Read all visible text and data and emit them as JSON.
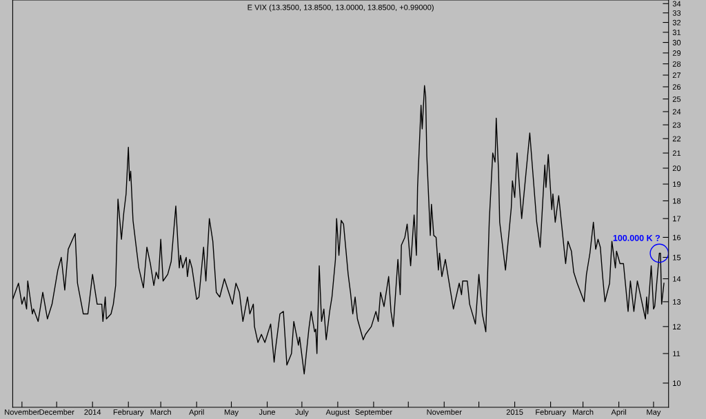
{
  "chart_data": {
    "type": "line",
    "title": "E VIX (13.3500, 13.8500, 13.0000, 13.8500, +0.99000)",
    "x": [
      "2013-10-24",
      "2013-10-29",
      "2013-11-01",
      "2013-11-03",
      "2013-11-05",
      "2013-11-06",
      "2013-11-10",
      "2013-11-11",
      "2013-11-15",
      "2013-11-19",
      "2013-11-23",
      "2013-11-27",
      "2013-12-02",
      "2013-12-05",
      "2013-12-08",
      "2013-12-11",
      "2013-12-17",
      "2013-12-19",
      "2013-12-24",
      "2013-12-28",
      "2014-01-01",
      "2014-01-05",
      "2014-01-09",
      "2014-01-10",
      "2014-01-12",
      "2014-01-13",
      "2014-01-17",
      "2014-01-19",
      "2014-01-21",
      "2014-01-23",
      "2014-01-26",
      "2014-01-28",
      "2014-01-30",
      "2014-02-01",
      "2014-02-02",
      "2014-02-03",
      "2014-02-05",
      "2014-02-08",
      "2014-02-10",
      "2014-02-14",
      "2014-02-17",
      "2014-02-20",
      "2014-02-23",
      "2014-02-25",
      "2014-02-27",
      "2014-03-01",
      "2014-03-03",
      "2014-03-07",
      "2014-03-10",
      "2014-03-14",
      "2014-03-17",
      "2014-03-18",
      "2014-03-20",
      "2014-03-23",
      "2014-03-24",
      "2014-03-26",
      "2014-03-28",
      "2014-04-01",
      "2014-04-03",
      "2014-04-07",
      "2014-04-09",
      "2014-04-12",
      "2014-04-15",
      "2014-04-18",
      "2014-04-21",
      "2014-04-25",
      "2014-05-02",
      "2014-05-05",
      "2014-05-08",
      "2014-05-11",
      "2014-05-15",
      "2014-05-17",
      "2014-05-20",
      "2014-05-21",
      "2014-05-24",
      "2014-05-27",
      "2014-05-30",
      "2014-06-04",
      "2014-06-07",
      "2014-06-08",
      "2014-06-12",
      "2014-06-15",
      "2014-06-18",
      "2014-06-22",
      "2014-06-24",
      "2014-06-28",
      "2014-06-29",
      "2014-07-03",
      "2014-07-07",
      "2014-07-09",
      "2014-07-12",
      "2014-07-13",
      "2014-07-14",
      "2014-07-16",
      "2014-07-18",
      "2014-07-20",
      "2014-07-22",
      "2014-07-25",
      "2014-07-27",
      "2014-07-30",
      "2014-07-31",
      "2014-08-02",
      "2014-08-04",
      "2014-08-06",
      "2014-08-10",
      "2014-08-12",
      "2014-08-14",
      "2014-08-16",
      "2014-08-18",
      "2014-08-23",
      "2014-08-25",
      "2014-08-30",
      "2014-09-03",
      "2014-09-05",
      "2014-09-07",
      "2014-09-10",
      "2014-09-14",
      "2014-09-16",
      "2014-09-18",
      "2014-09-22",
      "2014-09-24",
      "2014-09-25",
      "2014-09-28",
      "2014-09-30",
      "2014-10-03",
      "2014-10-06",
      "2014-10-08",
      "2014-10-09",
      "2014-10-12",
      "2014-10-13",
      "2014-10-15",
      "2014-10-16",
      "2014-10-17",
      "2014-10-20",
      "2014-10-21",
      "2014-10-23",
      "2014-10-25",
      "2014-10-27",
      "2014-10-28",
      "2014-10-30",
      "2014-11-02",
      "2014-11-09",
      "2014-11-14",
      "2014-11-16",
      "2014-11-17",
      "2014-11-21",
      "2014-11-23",
      "2014-11-28",
      "2014-12-01",
      "2014-12-04",
      "2014-12-07",
      "2014-12-10",
      "2014-12-13",
      "2014-12-15",
      "2014-12-16",
      "2014-12-18",
      "2014-12-19",
      "2014-12-24",
      "2014-12-29",
      "2014-12-30",
      "2015-01-01",
      "2015-01-03",
      "2015-01-07",
      "2015-01-14",
      "2015-01-20",
      "2015-01-23",
      "2015-01-27",
      "2015-01-28",
      "2015-01-30",
      "2015-02-02",
      "2015-02-03",
      "2015-02-05",
      "2015-02-08",
      "2015-02-10",
      "2015-02-14",
      "2015-02-16",
      "2015-02-19",
      "2015-02-21",
      "2015-02-24",
      "2015-03-02",
      "2015-03-04",
      "2015-03-07",
      "2015-03-10",
      "2015-03-12",
      "2015-03-14",
      "2015-03-16",
      "2015-03-18",
      "2015-03-20",
      "2015-03-24",
      "2015-03-26",
      "2015-03-29",
      "2015-03-30",
      "2015-04-02",
      "2015-04-05",
      "2015-04-09",
      "2015-04-11",
      "2015-04-14",
      "2015-04-17",
      "2015-04-20",
      "2015-04-24",
      "2015-04-25",
      "2015-04-26",
      "2015-04-29",
      "2015-05-01",
      "2015-05-02",
      "2015-05-06",
      "2015-05-07",
      "2015-05-08",
      "2015-05-10"
    ],
    "series": [
      {
        "color": "#000000",
        "values": [
          13.1,
          13.8,
          12.9,
          13.2,
          12.7,
          13.9,
          12.5,
          12.7,
          12.2,
          13.4,
          12.3,
          12.9,
          14.4,
          15.0,
          13.5,
          15.4,
          16.2,
          13.8,
          12.5,
          12.5,
          14.2,
          12.9,
          12.9,
          12.2,
          13.2,
          12.3,
          12.5,
          12.9,
          13.7,
          18.1,
          15.9,
          17.3,
          18.4,
          21.4,
          19.2,
          19.8,
          16.9,
          15.4,
          14.5,
          13.6,
          15.5,
          14.7,
          13.7,
          14.3,
          14.0,
          15.9,
          13.9,
          14.2,
          14.8,
          17.7,
          14.5,
          15.1,
          14.5,
          15.0,
          14.1,
          14.9,
          14.5,
          13.1,
          13.2,
          15.5,
          13.9,
          17.0,
          15.8,
          13.4,
          13.2,
          14.0,
          12.9,
          13.8,
          13.4,
          12.2,
          13.2,
          12.5,
          12.9,
          12.0,
          11.4,
          11.7,
          11.4,
          12.1,
          10.7,
          11.1,
          12.5,
          12.6,
          10.6,
          11.0,
          12.2,
          11.3,
          11.6,
          10.3,
          11.9,
          12.6,
          11.8,
          11.9,
          11.0,
          14.6,
          12.2,
          12.7,
          11.5,
          12.6,
          13.2,
          14.9,
          17.0,
          15.1,
          16.9,
          16.7,
          14.2,
          13.4,
          12.5,
          13.2,
          12.3,
          11.5,
          11.7,
          12.0,
          12.6,
          12.2,
          13.4,
          12.8,
          14.1,
          12.6,
          12.0,
          14.9,
          13.3,
          15.6,
          16.0,
          16.7,
          14.6,
          17.2,
          15.1,
          18.8,
          24.5,
          22.7,
          26.1,
          25.2,
          20.8,
          16.1,
          17.8,
          16.1,
          16.0,
          14.4,
          15.2,
          14.1,
          14.9,
          12.7,
          13.8,
          13.3,
          13.9,
          13.9,
          12.9,
          12.1,
          14.2,
          12.5,
          11.8,
          16.9,
          21.0,
          20.4,
          23.5,
          19.8,
          16.8,
          14.4,
          17.6,
          19.2,
          18.2,
          21.0,
          17.0,
          22.4,
          16.8,
          15.5,
          20.2,
          18.8,
          20.9,
          17.5,
          18.4,
          16.8,
          18.3,
          17.0,
          14.7,
          15.8,
          15.3,
          14.3,
          13.8,
          13.0,
          14.2,
          15.2,
          16.8,
          15.4,
          15.9,
          15.5,
          14.1,
          13.0,
          13.8,
          15.8,
          14.5,
          15.3,
          14.7,
          14.7,
          12.6,
          13.9,
          12.6,
          13.9,
          13.2,
          12.3,
          13.2,
          12.5,
          14.6,
          12.7,
          12.8,
          15.2,
          15.2,
          12.9,
          13.8
        ]
      }
    ],
    "xlim": [
      "2013-10-24",
      "2015-05-14"
    ],
    "xticks": [
      {
        "value": "2013-11-01",
        "label": "November"
      },
      {
        "value": "2013-12-01",
        "label": "December"
      },
      {
        "value": "2014-01-01",
        "label": "2014"
      },
      {
        "value": "2014-02-01",
        "label": "February"
      },
      {
        "value": "2014-03-01",
        "label": "March"
      },
      {
        "value": "2014-04-01",
        "label": "April"
      },
      {
        "value": "2014-05-01",
        "label": "May"
      },
      {
        "value": "2014-06-01",
        "label": "June"
      },
      {
        "value": "2014-07-01",
        "label": "July"
      },
      {
        "value": "2014-08-01",
        "label": "August"
      },
      {
        "value": "2014-09-01",
        "label": "September"
      },
      {
        "value": "2014-10-01",
        "label": null
      },
      {
        "value": "2014-11-01",
        "label": "November"
      },
      {
        "value": "2014-12-01",
        "label": null
      },
      {
        "value": "2015-01-01",
        "label": "2015"
      },
      {
        "value": "2015-02-01",
        "label": "February"
      },
      {
        "value": "2015-03-01",
        "label": "March"
      },
      {
        "value": "2015-04-01",
        "label": "April"
      },
      {
        "value": "2015-05-01",
        "label": "May"
      }
    ],
    "ylim": [
      9.25,
      34.4
    ],
    "log": true,
    "yticks": [
      10,
      11,
      12,
      13,
      14,
      15,
      16,
      17,
      18,
      19,
      20,
      21,
      22,
      23,
      24,
      25,
      26,
      27,
      28,
      29,
      30,
      31,
      32,
      33,
      34
    ],
    "annotations": [
      {
        "text": "100.000 K ?",
        "x": "2015-05-06",
        "y": 15.2
      }
    ],
    "grid": false
  }
}
